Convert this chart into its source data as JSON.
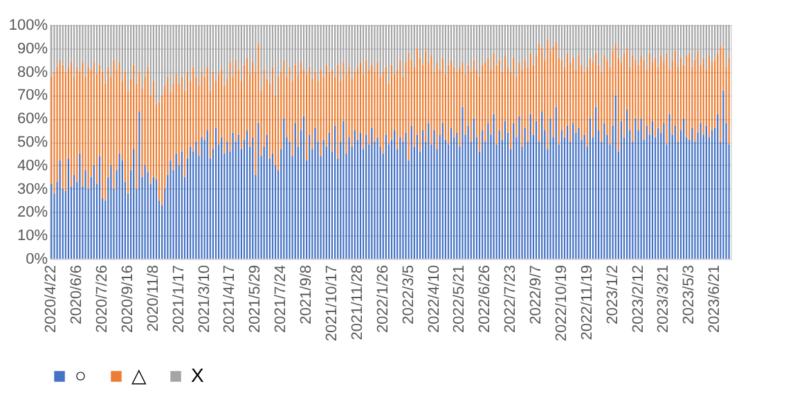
{
  "chart_data": {
    "type": "bar",
    "stacked": true,
    "legend": "bottom",
    "grid": "y",
    "categories": [
      "2020/4/22",
      null,
      null,
      null,
      null,
      null,
      null,
      null,
      null,
      "2020/6/6",
      null,
      null,
      null,
      null,
      null,
      null,
      null,
      null,
      "2020/7/26",
      null,
      null,
      null,
      null,
      null,
      null,
      null,
      null,
      "2020/9/16",
      null,
      null,
      null,
      null,
      null,
      null,
      null,
      null,
      "2020/11/8",
      null,
      null,
      null,
      null,
      null,
      null,
      null,
      null,
      "2021/1/17",
      null,
      null,
      null,
      null,
      null,
      null,
      null,
      null,
      "2021/3/10",
      null,
      null,
      null,
      null,
      null,
      null,
      null,
      null,
      "2021/4/17",
      null,
      null,
      null,
      null,
      null,
      null,
      null,
      null,
      "2021/5/29",
      null,
      null,
      null,
      null,
      null,
      null,
      null,
      null,
      "2021/7/24",
      null,
      null,
      null,
      null,
      null,
      null,
      null,
      null,
      "2021/9/8",
      null,
      null,
      null,
      null,
      null,
      null,
      null,
      null,
      "2021/10/17",
      null,
      null,
      null,
      null,
      null,
      null,
      null,
      null,
      "2021/11/28",
      null,
      null,
      null,
      null,
      null,
      null,
      null,
      null,
      "2022/1/26",
      null,
      null,
      null,
      null,
      null,
      null,
      null,
      null,
      "2022/3/5",
      null,
      null,
      null,
      null,
      null,
      null,
      null,
      null,
      "2022/4/10",
      null,
      null,
      null,
      null,
      null,
      null,
      null,
      null,
      "2022/5/21",
      null,
      null,
      null,
      null,
      null,
      null,
      null,
      null,
      "2022/6/26",
      null,
      null,
      null,
      null,
      null,
      null,
      null,
      null,
      "2022/7/23",
      null,
      null,
      null,
      null,
      null,
      null,
      null,
      null,
      "2022/9/7",
      null,
      null,
      null,
      null,
      null,
      null,
      null,
      null,
      "2022/10/19",
      null,
      null,
      null,
      null,
      null,
      null,
      null,
      null,
      "2022/11/19",
      null,
      null,
      null,
      null,
      null,
      null,
      null,
      null,
      "2023/1/2",
      null,
      null,
      null,
      null,
      null,
      null,
      null,
      null,
      "2023/2/12",
      null,
      null,
      null,
      null,
      null,
      null,
      null,
      null,
      "2023/3/21",
      null,
      null,
      null,
      null,
      null,
      null,
      null,
      null,
      "2023/5/3",
      null,
      null,
      null,
      null,
      null,
      null,
      null,
      null,
      "2023/6/21",
      null,
      null,
      null,
      null,
      null
    ],
    "ylim": [
      0,
      100
    ],
    "yticks": [
      {
        "value": 0,
        "label": "0%"
      },
      {
        "value": 10,
        "label": "10%"
      },
      {
        "value": 20,
        "label": "20%"
      },
      {
        "value": 30,
        "label": "30%"
      },
      {
        "value": 40,
        "label": "40%"
      },
      {
        "value": 50,
        "label": "50%"
      },
      {
        "value": 60,
        "label": "60%"
      },
      {
        "value": 70,
        "label": "70%"
      },
      {
        "value": 80,
        "label": "80%"
      },
      {
        "value": 90,
        "label": "90%"
      },
      {
        "value": 100,
        "label": "100%"
      }
    ],
    "series": [
      {
        "name": "○",
        "color": "#4472c4",
        "values": [
          32,
          28,
          33,
          42,
          30,
          29,
          43,
          31,
          36,
          33,
          45,
          31,
          38,
          30,
          35,
          40,
          32,
          44,
          26,
          25,
          35,
          40,
          30,
          38,
          45,
          42,
          33,
          28,
          38,
          47,
          30,
          63,
          35,
          40,
          37,
          32,
          35,
          34,
          25,
          23,
          30,
          36,
          42,
          38,
          45,
          40,
          46,
          35,
          43,
          48,
          46,
          50,
          44,
          52,
          51,
          55,
          43,
          47,
          56,
          49,
          52,
          45,
          50,
          46,
          54,
          50,
          53,
          47,
          51,
          55,
          48,
          52,
          36,
          58,
          44,
          48,
          53,
          43,
          45,
          40,
          38,
          47,
          60,
          52,
          50,
          44,
          58,
          48,
          55,
          61,
          42,
          53,
          47,
          56,
          50,
          44,
          51,
          48,
          54,
          46,
          57,
          43,
          50,
          59,
          45,
          52,
          48,
          55,
          51,
          54,
          47,
          53,
          49,
          56,
          50,
          52,
          48,
          45,
          53,
          49,
          51,
          55,
          47,
          52,
          50,
          54,
          42,
          57,
          48,
          53,
          46,
          55,
          50,
          58,
          49,
          55,
          47,
          53,
          58,
          51,
          49,
          56,
          52,
          54,
          48,
          65,
          53,
          57,
          50,
          60,
          52,
          46,
          55,
          50,
          58,
          53,
          62,
          49,
          55,
          51,
          59,
          54,
          47,
          58,
          52,
          61,
          48,
          56,
          50,
          62,
          53,
          59,
          50,
          63,
          55,
          47,
          60,
          52,
          65,
          49,
          55,
          52,
          57,
          50,
          58,
          54,
          56,
          51,
          53,
          48,
          60,
          52,
          65,
          55,
          50,
          58,
          53,
          49,
          57,
          70,
          46,
          59,
          52,
          64,
          55,
          50,
          60,
          55,
          60,
          51,
          57,
          53,
          59,
          52,
          56,
          54,
          58,
          49,
          62,
          53,
          57,
          50,
          55,
          60,
          52,
          51,
          56,
          50,
          54,
          58,
          53,
          57,
          52,
          55,
          56,
          62,
          50,
          72,
          58,
          49
        ]
      },
      {
        "name": "△",
        "color": "#ed7d31",
        "values": [
          46,
          52,
          49,
          43,
          53,
          51,
          39,
          53,
          42,
          49,
          35,
          53,
          40,
          52,
          46,
          44,
          47,
          39,
          54,
          50,
          47,
          38,
          55,
          43,
          39,
          34,
          47,
          44,
          39,
          36,
          45,
          17,
          38,
          38,
          45,
          38,
          41,
          32,
          42,
          47,
          44,
          42,
          29,
          37,
          34,
          35,
          32,
          37,
          37,
          28,
          36,
          28,
          30,
          28,
          27,
          27,
          29,
          33,
          20,
          30,
          29,
          29,
          27,
          38,
          24,
          35,
          28,
          29,
          32,
          31,
          31,
          32,
          44,
          34,
          28,
          33,
          24,
          32,
          37,
          30,
          40,
          33,
          25,
          26,
          32,
          32,
          25,
          31,
          29,
          20,
          37,
          29,
          30,
          24,
          26,
          37,
          27,
          35,
          26,
          35,
          21,
          40,
          26,
          25,
          34,
          30,
          29,
          25,
          31,
          30,
          32,
          32,
          32,
          27,
          30,
          32,
          30,
          35,
          29,
          26,
          32,
          24,
          34,
          33,
          28,
          30,
          46,
          28,
          34,
          37,
          40,
          28,
          39,
          26,
          38,
          25,
          37,
          28,
          28,
          28,
          34,
          29,
          30,
          26,
          34,
          19,
          26,
          26,
          30,
          25,
          29,
          32,
          28,
          34,
          28,
          28,
          26,
          34,
          30,
          29,
          28,
          28,
          33,
          28,
          26,
          23,
          33,
          29,
          32,
          26,
          30,
          28,
          42,
          27,
          30,
          47,
          29,
          39,
          28,
          37,
          30,
          30,
          31,
          34,
          28,
          27,
          31,
          32,
          27,
          34,
          26,
          32,
          23,
          28,
          30,
          29,
          32,
          33,
          32,
          22,
          40,
          25,
          36,
          26,
          27,
          37,
          25,
          28,
          27,
          34,
          24,
          35,
          25,
          34,
          26,
          33,
          26,
          39,
          19,
          32,
          32,
          32,
          31,
          23,
          35,
          37,
          26,
          35,
          35,
          25,
          33,
          24,
          35,
          29,
          29,
          26,
          41,
          18,
          24,
          37
        ]
      },
      {
        "name": "X",
        "color": "#a5a5a5",
        "values": [
          22,
          20,
          18,
          15,
          17,
          20,
          18,
          16,
          22,
          18,
          20,
          16,
          22,
          18,
          19,
          16,
          21,
          17,
          20,
          25,
          18,
          22,
          15,
          19,
          16,
          24,
          20,
          28,
          23,
          17,
          25,
          20,
          27,
          22,
          18,
          30,
          24,
          34,
          33,
          30,
          26,
          22,
          29,
          25,
          21,
          25,
          22,
          28,
          20,
          24,
          18,
          22,
          26,
          20,
          22,
          18,
          28,
          20,
          24,
          21,
          19,
          26,
          23,
          16,
          22,
          15,
          19,
          24,
          17,
          14,
          21,
          16,
          20,
          8,
          28,
          19,
          23,
          25,
          18,
          30,
          22,
          20,
          15,
          22,
          18,
          24,
          17,
          21,
          16,
          19,
          21,
          18,
          23,
          20,
          24,
          19,
          22,
          17,
          20,
          19,
          22,
          17,
          24,
          16,
          21,
          18,
          23,
          20,
          18,
          16,
          21,
          15,
          19,
          17,
          20,
          16,
          22,
          20,
          18,
          25,
          17,
          21,
          19,
          15,
          22,
          16,
          12,
          15,
          18,
          10,
          14,
          17,
          11,
          16,
          13,
          20,
          16,
          19,
          14,
          21,
          17,
          15,
          18,
          20,
          18,
          16,
          21,
          17,
          20,
          15,
          19,
          22,
          17,
          16,
          14,
          19,
          12,
          17,
          15,
          20,
          13,
          18,
          20,
          14,
          22,
          16,
          19,
          15,
          18,
          12,
          17,
          13,
          8,
          10,
          15,
          6,
          11,
          9,
          7,
          14,
          15,
          18,
          12,
          16,
          14,
          19,
          13,
          17,
          20,
          18,
          14,
          16,
          12,
          17,
          20,
          13,
          15,
          18,
          11,
          8,
          14,
          16,
          12,
          10,
          18,
          13,
          15,
          17,
          13,
          15,
          19,
          12,
          16,
          14,
          18,
          13,
          16,
          12,
          19,
          15,
          11,
          18,
          14,
          17,
          13,
          12,
          18,
          15,
          11,
          17,
          14,
          19,
          13,
          16,
          15,
          12,
          9,
          10,
          18,
          14
        ]
      }
    ]
  }
}
